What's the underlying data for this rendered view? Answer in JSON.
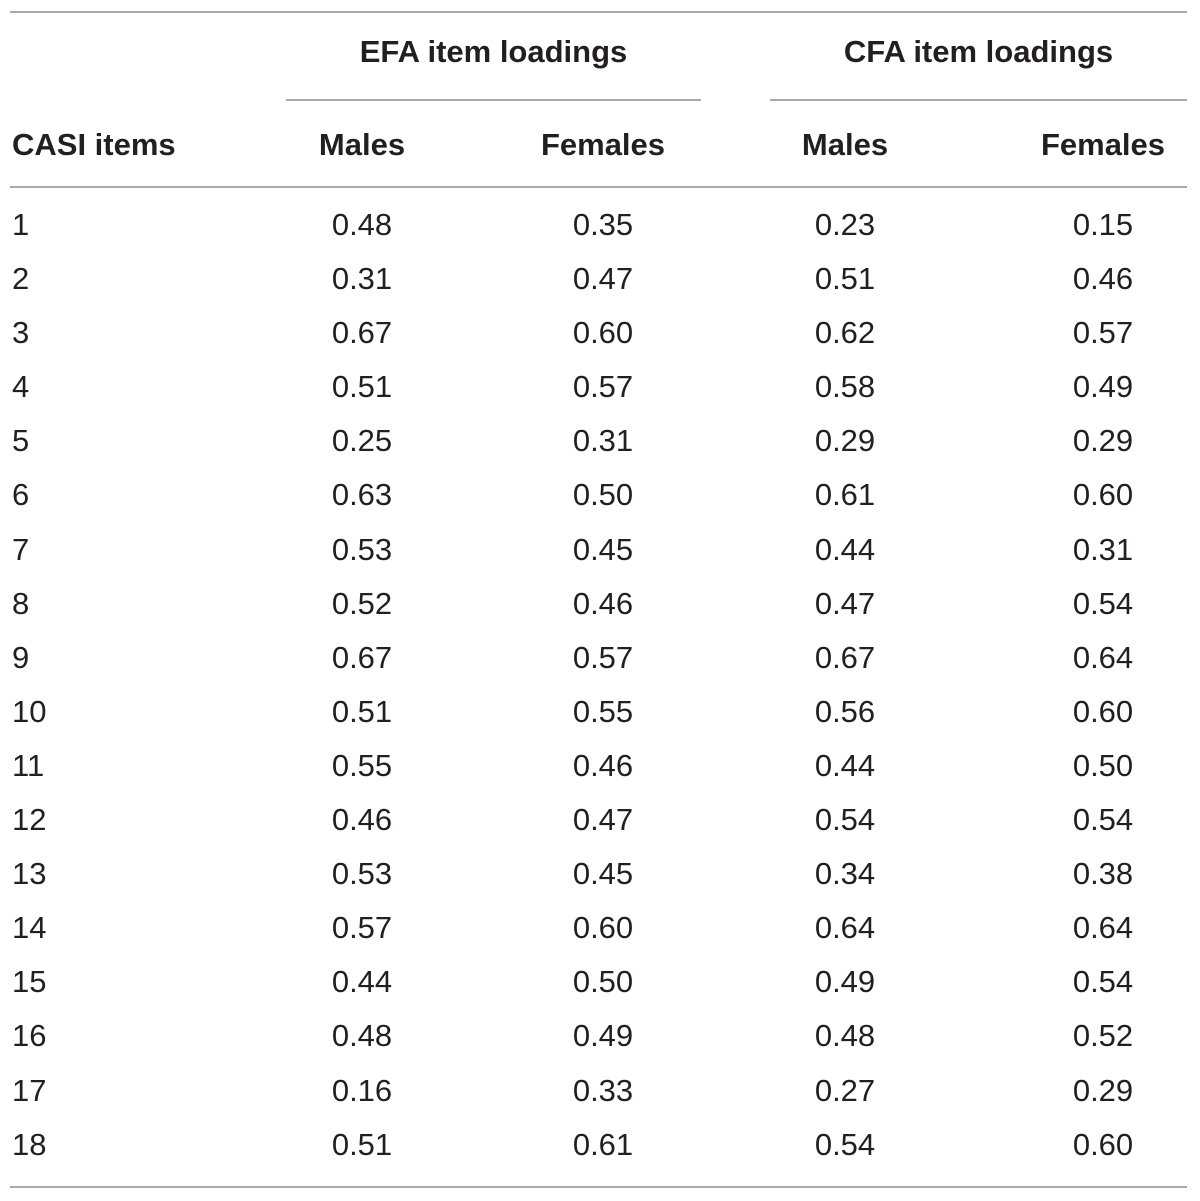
{
  "table": {
    "group_headers": {
      "efa": "EFA item loadings",
      "cfa": "CFA item loadings"
    },
    "column_headers": {
      "items": "CASI items",
      "efa_males": "Males",
      "efa_females": "Females",
      "cfa_males": "Males",
      "cfa_females": "Females"
    },
    "rows": [
      {
        "item": "1",
        "efa_males": "0.48",
        "efa_females": "0.35",
        "cfa_males": "0.23",
        "cfa_females": "0.15"
      },
      {
        "item": "2",
        "efa_males": "0.31",
        "efa_females": "0.47",
        "cfa_males": "0.51",
        "cfa_females": "0.46"
      },
      {
        "item": "3",
        "efa_males": "0.67",
        "efa_females": "0.60",
        "cfa_males": "0.62",
        "cfa_females": "0.57"
      },
      {
        "item": "4",
        "efa_males": "0.51",
        "efa_females": "0.57",
        "cfa_males": "0.58",
        "cfa_females": "0.49"
      },
      {
        "item": "5",
        "efa_males": "0.25",
        "efa_females": "0.31",
        "cfa_males": "0.29",
        "cfa_females": "0.29"
      },
      {
        "item": "6",
        "efa_males": "0.63",
        "efa_females": "0.50",
        "cfa_males": "0.61",
        "cfa_females": "0.60"
      },
      {
        "item": "7",
        "efa_males": "0.53",
        "efa_females": "0.45",
        "cfa_males": "0.44",
        "cfa_females": "0.31"
      },
      {
        "item": "8",
        "efa_males": "0.52",
        "efa_females": "0.46",
        "cfa_males": "0.47",
        "cfa_females": "0.54"
      },
      {
        "item": "9",
        "efa_males": "0.67",
        "efa_females": "0.57",
        "cfa_males": "0.67",
        "cfa_females": "0.64"
      },
      {
        "item": "10",
        "efa_males": "0.51",
        "efa_females": "0.55",
        "cfa_males": "0.56",
        "cfa_females": "0.60"
      },
      {
        "item": "11",
        "efa_males": "0.55",
        "efa_females": "0.46",
        "cfa_males": "0.44",
        "cfa_females": "0.50"
      },
      {
        "item": "12",
        "efa_males": "0.46",
        "efa_females": "0.47",
        "cfa_males": "0.54",
        "cfa_females": "0.54"
      },
      {
        "item": "13",
        "efa_males": "0.53",
        "efa_females": "0.45",
        "cfa_males": "0.34",
        "cfa_females": "0.38"
      },
      {
        "item": "14",
        "efa_males": "0.57",
        "efa_females": "0.60",
        "cfa_males": "0.64",
        "cfa_females": "0.64"
      },
      {
        "item": "15",
        "efa_males": "0.44",
        "efa_females": "0.50",
        "cfa_males": "0.49",
        "cfa_females": "0.54"
      },
      {
        "item": "16",
        "efa_males": "0.48",
        "efa_females": "0.49",
        "cfa_males": "0.48",
        "cfa_females": "0.52"
      },
      {
        "item": "17",
        "efa_males": "0.16",
        "efa_females": "0.33",
        "cfa_males": "0.27",
        "cfa_females": "0.29"
      },
      {
        "item": "18",
        "efa_males": "0.51",
        "efa_females": "0.61",
        "cfa_males": "0.54",
        "cfa_females": "0.60"
      }
    ]
  },
  "colors": {
    "text": "#231f20",
    "rules": "#a7a9ac",
    "background": "#ffffff"
  }
}
